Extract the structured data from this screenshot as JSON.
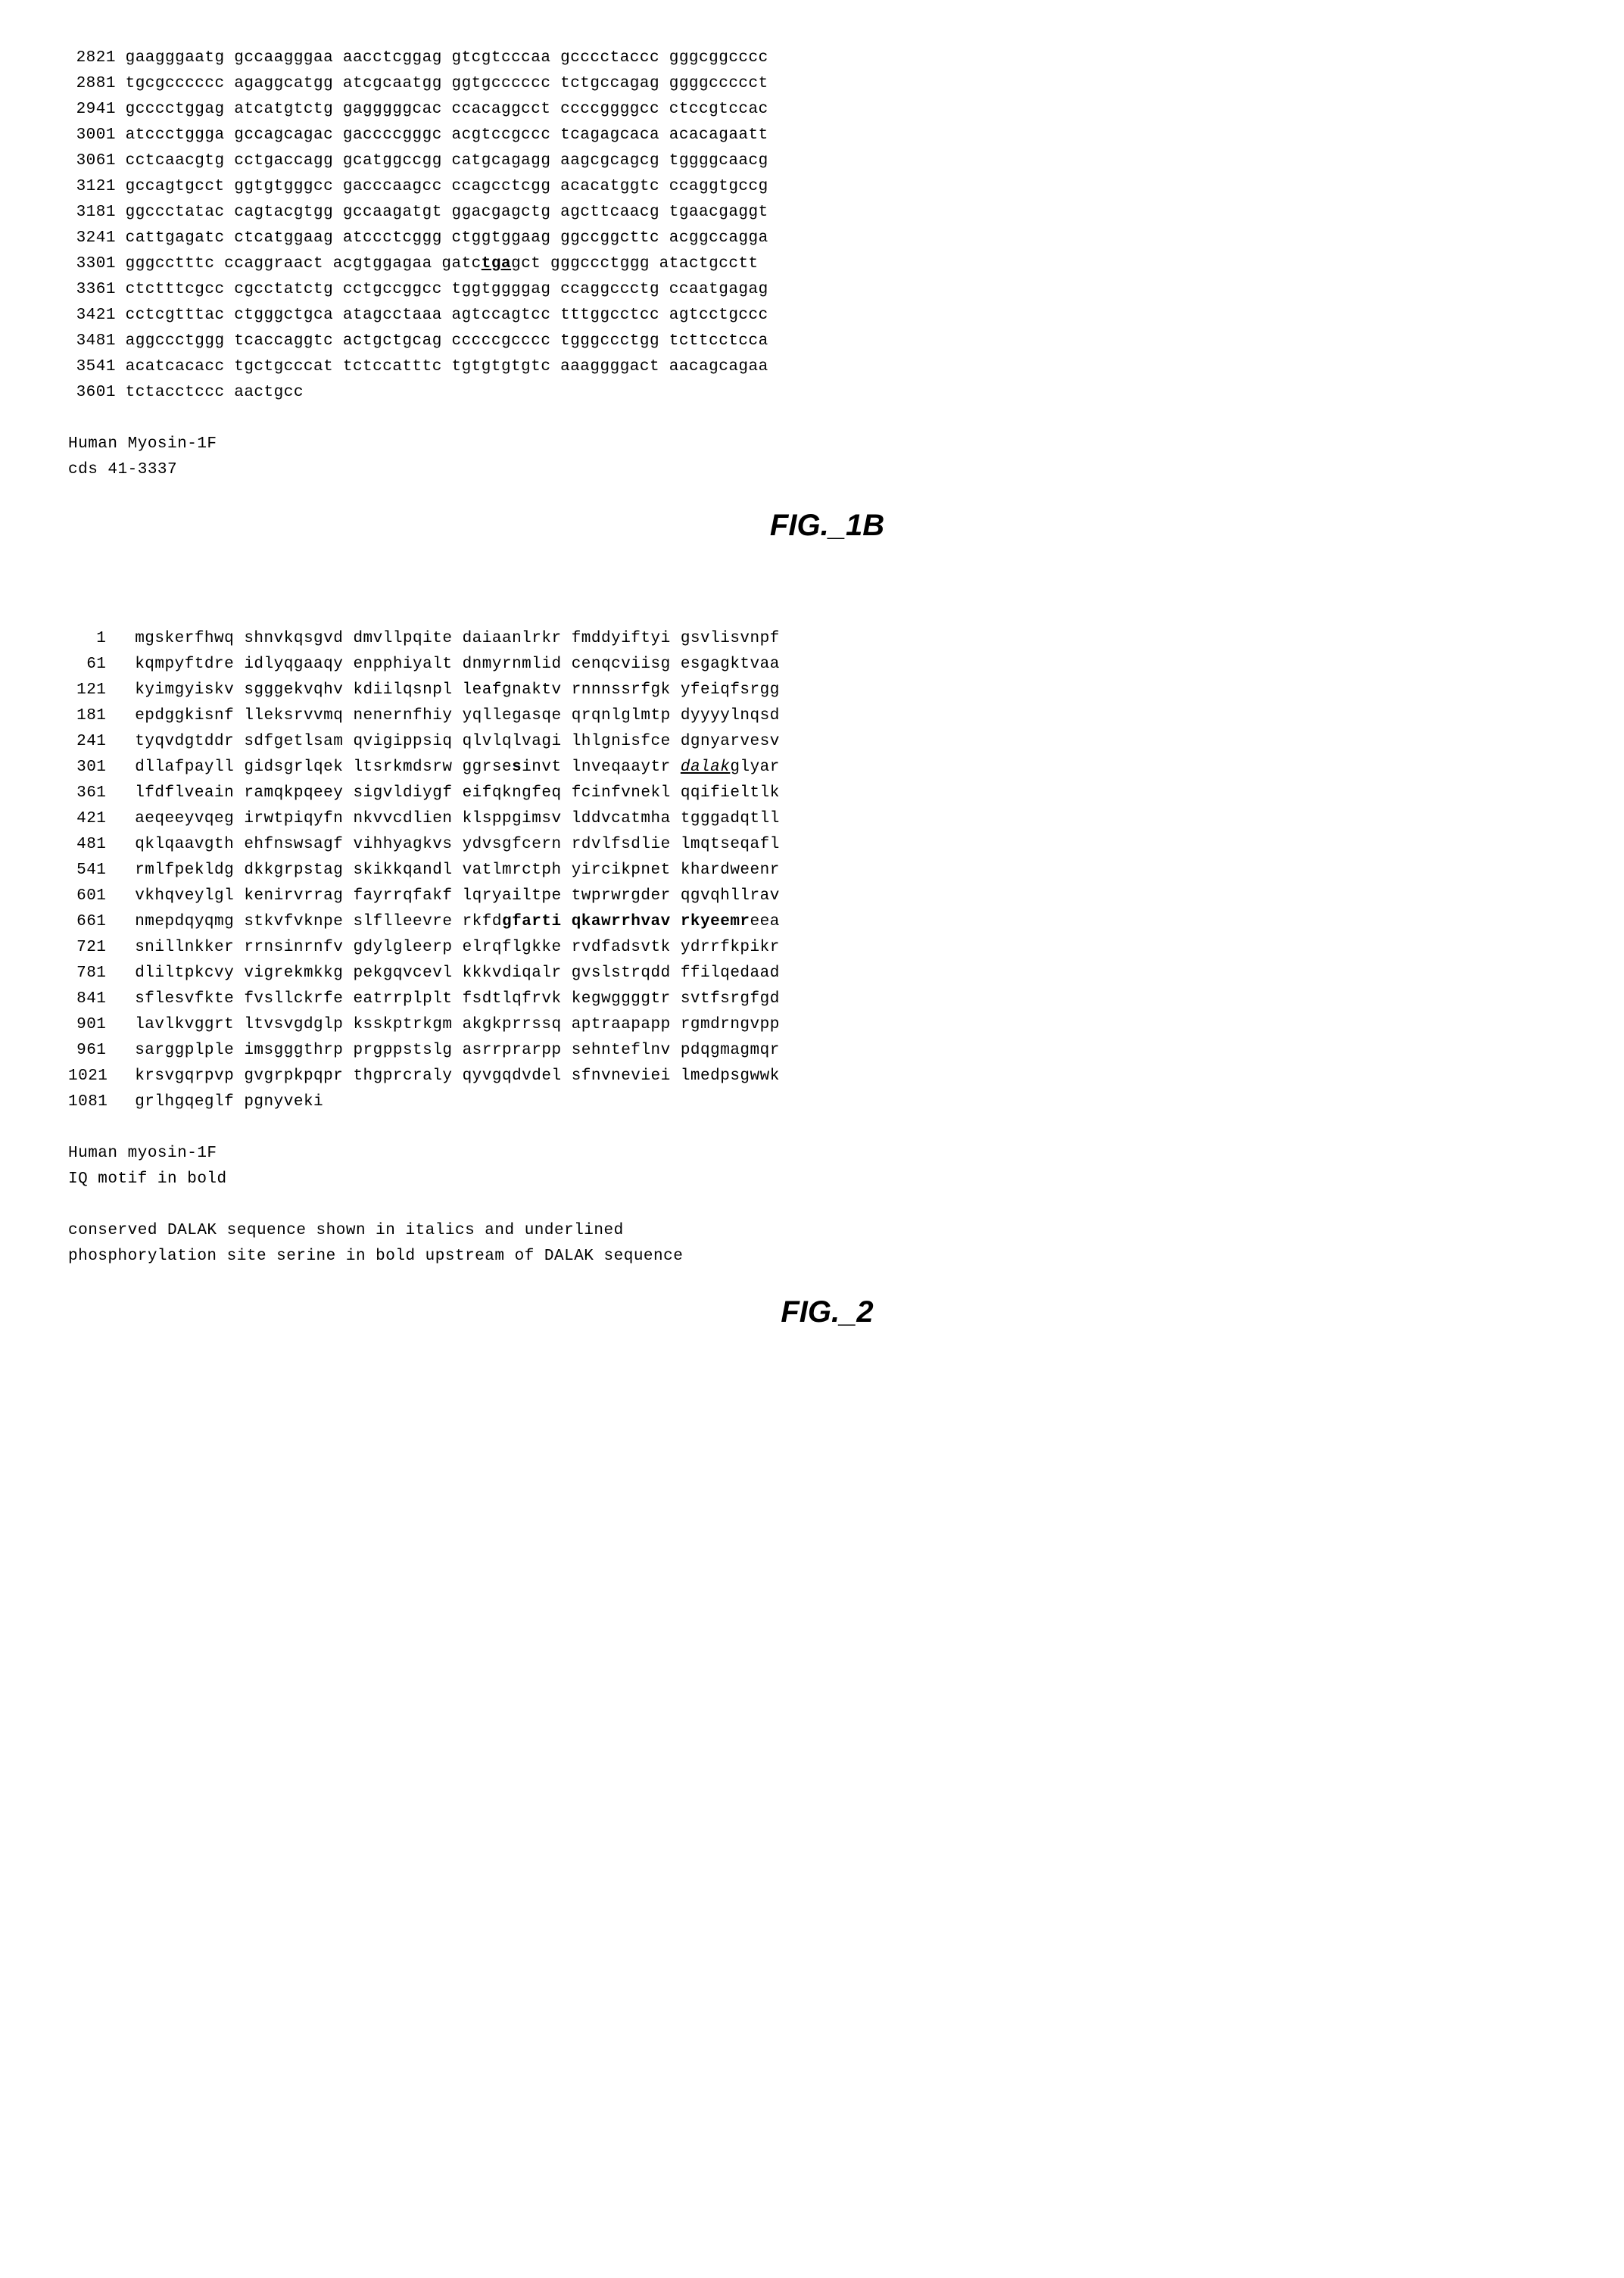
{
  "dna": {
    "rows": [
      {
        "pos": "2821",
        "segs": [
          "gaagggaatg",
          "gccaagggaa",
          "aacctcggag",
          "gtcgtcccaa",
          "gcccctaccc",
          "gggcggcccc"
        ]
      },
      {
        "pos": "2881",
        "segs": [
          "tgcgcccccc",
          "agaggcatgg",
          "atcgcaatgg",
          "ggtgcccccc",
          "tctgccagag",
          "ggggccccct"
        ]
      },
      {
        "pos": "2941",
        "segs": [
          "gcccctggag",
          "atcatgtctg",
          "gagggggcac",
          "ccacaggcct",
          "ccccggggcc",
          "ctccgtccac"
        ]
      },
      {
        "pos": "3001",
        "segs": [
          "atccctggga",
          "gccagcagac",
          "gaccccgggc",
          "acgtccgccc",
          "tcagagcaca",
          "acacagaatt"
        ]
      },
      {
        "pos": "3061",
        "segs": [
          "cctcaacgtg",
          "cctgaccagg",
          "gcatggccgg",
          "catgcagagg",
          "aagcgcagcg",
          "tggggcaacg"
        ]
      },
      {
        "pos": "3121",
        "segs": [
          "gccagtgcct",
          "ggtgtgggcc",
          "gacccaagcc",
          "ccagcctcgg",
          "acacatggtc",
          "ccaggtgccg"
        ]
      },
      {
        "pos": "3181",
        "segs": [
          "ggccctatac",
          "cagtacgtgg",
          "gccaagatgt",
          "ggacgagctg",
          "agcttcaacg",
          "tgaacgaggt"
        ]
      },
      {
        "pos": "3241",
        "segs": [
          "cattgagatc",
          "ctcatggaag",
          "atccctcggg",
          "ctggtggaag",
          "ggccggcttc",
          "acggccagga"
        ]
      },
      {
        "pos": "3301",
        "segs": [
          "gggcctttc",
          "ccaggraact",
          "acgtggagaa",
          "gatc",
          "tga",
          "gct",
          "gggccctggg",
          "atactgcctt"
        ],
        "tgaIdx": 4
      },
      {
        "pos": "3361",
        "segs": [
          "ctctttcgcc",
          "cgcctatctg",
          "cctgccggcc",
          "tggtggggag",
          "ccaggccctg",
          "ccaatgagag"
        ]
      },
      {
        "pos": "3421",
        "segs": [
          "cctcgtttac",
          "ctgggctgca",
          "atagcctaaa",
          "agtccagtcc",
          "tttggcctcc",
          "agtcctgccc"
        ]
      },
      {
        "pos": "3481",
        "segs": [
          "aggccctggg",
          "tcaccaggtc",
          "actgctgcag",
          "cccccgcccc",
          "tgggccctgg",
          "tcttcctcca"
        ]
      },
      {
        "pos": "3541",
        "segs": [
          "acatcacacc",
          "tgctgcccat",
          "tctccatttc",
          "tgtgtgtgtc",
          "aaaggggact",
          "aacagcagaa"
        ]
      },
      {
        "pos": "3601",
        "segs": [
          "tctacctccc",
          "aactgcc"
        ]
      }
    ],
    "note1": "Human Myosin-1F",
    "note2": "cds 41-3337"
  },
  "fig1": "FIG._1B",
  "protein": {
    "rows": [
      {
        "pos": "1",
        "parts": [
          {
            "t": "mgskerfhwq shnvkqsgvd dmvllpqite daiaanlrkr fmddyiftyi gsvlisvnpf"
          }
        ]
      },
      {
        "pos": "61",
        "parts": [
          {
            "t": "kqmpyftdre idlyqgaaqy enpphiyalt dnmyrnmlid cenqcviisg esgagktvaa"
          }
        ]
      },
      {
        "pos": "121",
        "parts": [
          {
            "t": "kyimgyiskv sgggekvqhv kdiilqsnpl leafgnaktv rnnnssrfgk yfeiqfsrgg"
          }
        ]
      },
      {
        "pos": "181",
        "parts": [
          {
            "t": "epdggkisnf lleksrvvmq nenernfhiy yqllegasqe qrqnlglmtp dyyyylnqsd"
          }
        ]
      },
      {
        "pos": "241",
        "parts": [
          {
            "t": "tyqvdgtddr sdfgetlsam qvigippsiq qlvlqlvagi lhlgnisfce dgnyarvesv"
          }
        ]
      },
      {
        "pos": "301",
        "parts": [
          {
            "t": "dllafpayll gidsgrlqek ltsrkmdsrw ggrse"
          },
          {
            "t": "s",
            "cls": "b"
          },
          {
            "t": "invt lnveqaaytr "
          },
          {
            "t": "dalak",
            "cls": "iu"
          },
          {
            "t": "glyar"
          }
        ]
      },
      {
        "pos": "361",
        "parts": [
          {
            "t": "lfdflveain ramqkpqeey sigvldiygf eifqkngfeq fcinfvnekl qqifieltlk"
          }
        ]
      },
      {
        "pos": "421",
        "parts": [
          {
            "t": "aeqeeyvqeg irwtpiqyfn nkvvcdlien klsppgimsv lddvcatmha tgggadqtll"
          }
        ]
      },
      {
        "pos": "481",
        "parts": [
          {
            "t": "qklqaavgth ehfnswsagf vihhyagkvs ydvsgfcern rdvlfsdlie lmqtseqafl"
          }
        ]
      },
      {
        "pos": "541",
        "parts": [
          {
            "t": "rmlfpekldg dkkgrpstag skikkqandl vatlmrctph yircikpnet khardweenr"
          }
        ]
      },
      {
        "pos": "601",
        "parts": [
          {
            "t": "vkhqveylgl kenirvrrag fayrrqfakf lqryailtpe twprwrgder qgvqhllrav"
          }
        ]
      },
      {
        "pos": "661",
        "parts": [
          {
            "t": "nmepdqyqmg stkvfvknpe slflleevre rkfd"
          },
          {
            "t": "gfarti qkawrrhvav rkyeemr",
            "cls": "b"
          },
          {
            "t": "eea"
          }
        ]
      },
      {
        "pos": "721",
        "parts": [
          {
            "t": "snillnkker rrnsinrnfv gdylgleerp elrqflgkke rvdfadsvtk ydrrfkpikr"
          }
        ]
      },
      {
        "pos": "781",
        "parts": [
          {
            "t": "dliltpkcvy vigrekmkkg pekgqvcevl kkkvdiqalr gvslstrqdd ffilqedaad"
          }
        ]
      },
      {
        "pos": "841",
        "parts": [
          {
            "t": "sflesvfkte fvsllckrfe eatrrplplt fsdtlqfrvk kegwggggtr svtfsrgfgd"
          }
        ]
      },
      {
        "pos": "901",
        "parts": [
          {
            "t": "lavlkvggrt ltvsvgdglp ksskptrkgm akgkprrssq aptraapapp rgmdrngvpp"
          }
        ]
      },
      {
        "pos": "961",
        "parts": [
          {
            "t": "sarggplple imsgggthrp prgppstslg asrrprarpp sehnteflnv pdqgmagmqr"
          }
        ]
      },
      {
        "pos": "1021",
        "parts": [
          {
            "t": "krsvgqrpvp gvgrpkpqpr thgprcraly qyvgqdvdel sfnvneviei lmedpsgwwk"
          }
        ]
      },
      {
        "pos": "1081",
        "parts": [
          {
            "t": "grlhgqeglf pgnyveki"
          }
        ]
      }
    ],
    "note1": "Human myosin-1F",
    "note2": "IQ motif in bold",
    "note3": "conserved DALAK sequence shown in italics and underlined",
    "note4": "phosphorylation site serine in bold upstream of DALAK sequence"
  },
  "fig2": "FIG._2"
}
